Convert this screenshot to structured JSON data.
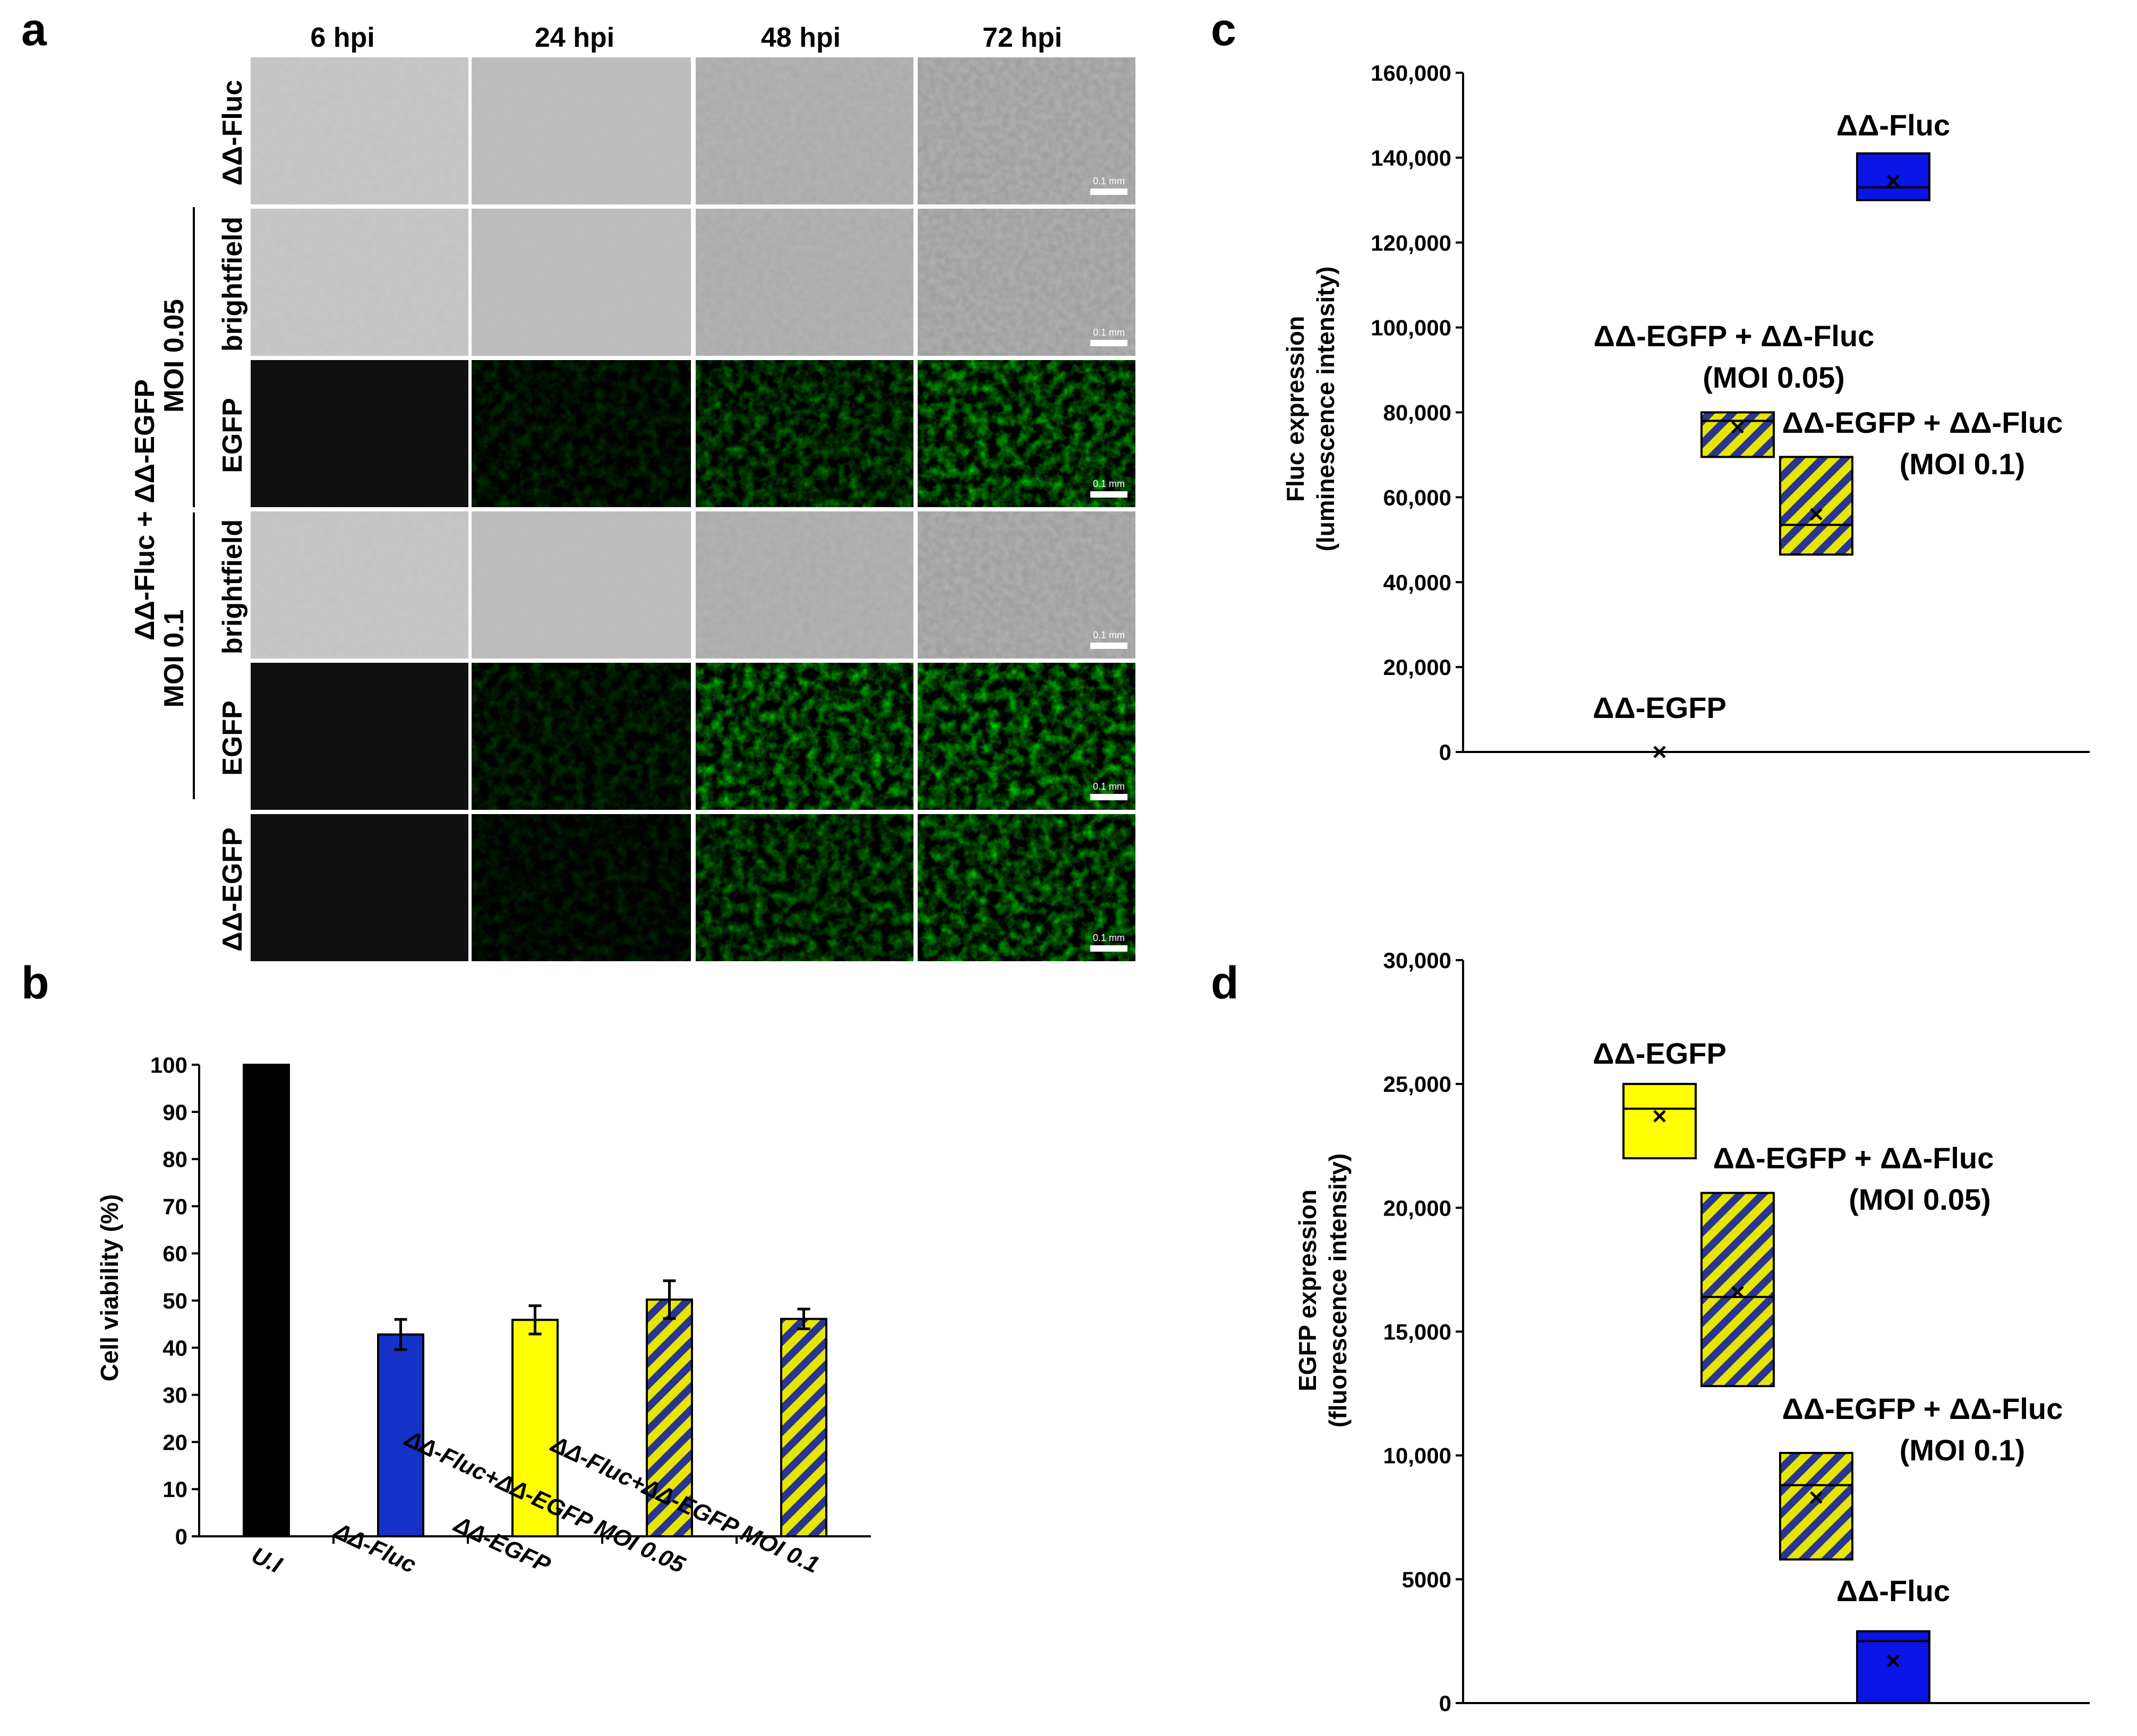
{
  "panels": {
    "a": "a",
    "b": "b",
    "c": "c",
    "d": "d"
  },
  "micrographs": {
    "columns": [
      "6 hpi",
      "24 hpi",
      "48 hpi",
      "72 hpi"
    ],
    "row_labels": [
      "ΔΔ-Fluc",
      "brightfield",
      "EGFP",
      "brightfield",
      "EGFP",
      "ΔΔ-EGFP"
    ],
    "group_label_1": "ΔΔ-Fluc + ΔΔ-EGFP",
    "group_moi_1": "MOI 0.05",
    "group_moi_2": "MOI 0.1",
    "scale_bar": "0.1 mm"
  },
  "chart_data": [
    {
      "panel": "b",
      "type": "bar",
      "ylabel": "Cell viability (%)",
      "ylim": [
        0,
        100
      ],
      "yticks": [
        0,
        10,
        20,
        30,
        40,
        50,
        60,
        70,
        80,
        90,
        100
      ],
      "categories": [
        "U.I",
        "ΔΔ-Fluc",
        "ΔΔ-EGFP",
        "ΔΔ-Fluc+ΔΔ-EGFP MOI 0.05",
        "ΔΔ-Fluc+ΔΔ-EGFP MOI 0.1"
      ],
      "values": [
        100,
        42.8,
        45.9,
        50.2,
        46.1
      ],
      "errors": [
        0,
        3.2,
        3,
        4,
        2.1
      ],
      "colors": [
        "#000000",
        "#1432c8",
        "#ffff00",
        "hatch",
        "hatch"
      ]
    },
    {
      "panel": "c",
      "type": "box",
      "ylabel": "Fluc expression",
      "ylabel2": "(luminescence intensity)",
      "ylim": [
        0,
        160000
      ],
      "yticks": [
        "0",
        "20,000",
        "40,000",
        "60,000",
        "80,000",
        "100,000",
        "120,000",
        "140,000",
        "160,000"
      ],
      "boxes": [
        {
          "name": "ΔΔ-EGFP",
          "min": 0,
          "median": 0,
          "max": 0,
          "mean": 0,
          "fill": "#ffff00"
        },
        {
          "name": "ΔΔ-EGFP +  ΔΔ-Fluc",
          "sub": "(MOI 0.05)",
          "min": 69500,
          "median": 78000,
          "max": 80000,
          "mean": 76500,
          "fill": "hatch"
        },
        {
          "name": "ΔΔ-EGFP +  ΔΔ-Fluc",
          "sub": "(MOI 0.1)",
          "min": 46500,
          "median": 53500,
          "max": 69500,
          "mean": 56000,
          "fill": "hatch"
        },
        {
          "name": "ΔΔ-Fluc",
          "min": 130000,
          "median": 133000,
          "max": 141000,
          "mean": 134500,
          "fill": "#0a14e6"
        }
      ]
    },
    {
      "panel": "d",
      "type": "box",
      "ylabel": "EGFP expression",
      "ylabel2": "(fluorescence intensity)",
      "ylim": [
        0,
        30000
      ],
      "yticks": [
        "0",
        "5000",
        "10,000",
        "15,000",
        "20,000",
        "25,000",
        "30,000"
      ],
      "boxes": [
        {
          "name": "ΔΔ-EGFP",
          "min": 22000,
          "median": 24000,
          "max": 25000,
          "mean": 23700,
          "fill": "#ffff00"
        },
        {
          "name": "ΔΔ-EGFP +  ΔΔ-Fluc",
          "sub": "(MOI 0.05)",
          "min": 12800,
          "median": 16400,
          "max": 20600,
          "mean": 16600,
          "fill": "hatch"
        },
        {
          "name": "ΔΔ-EGFP +  ΔΔ-Fluc",
          "sub": "(MOI 0.1)",
          "min": 5800,
          "median": 8800,
          "max": 10100,
          "mean": 8300,
          "fill": "hatch"
        },
        {
          "name": "ΔΔ-Fluc",
          "min": 0,
          "median": 2500,
          "max": 2900,
          "mean": 1700,
          "fill": "#0a14e6"
        }
      ]
    }
  ]
}
